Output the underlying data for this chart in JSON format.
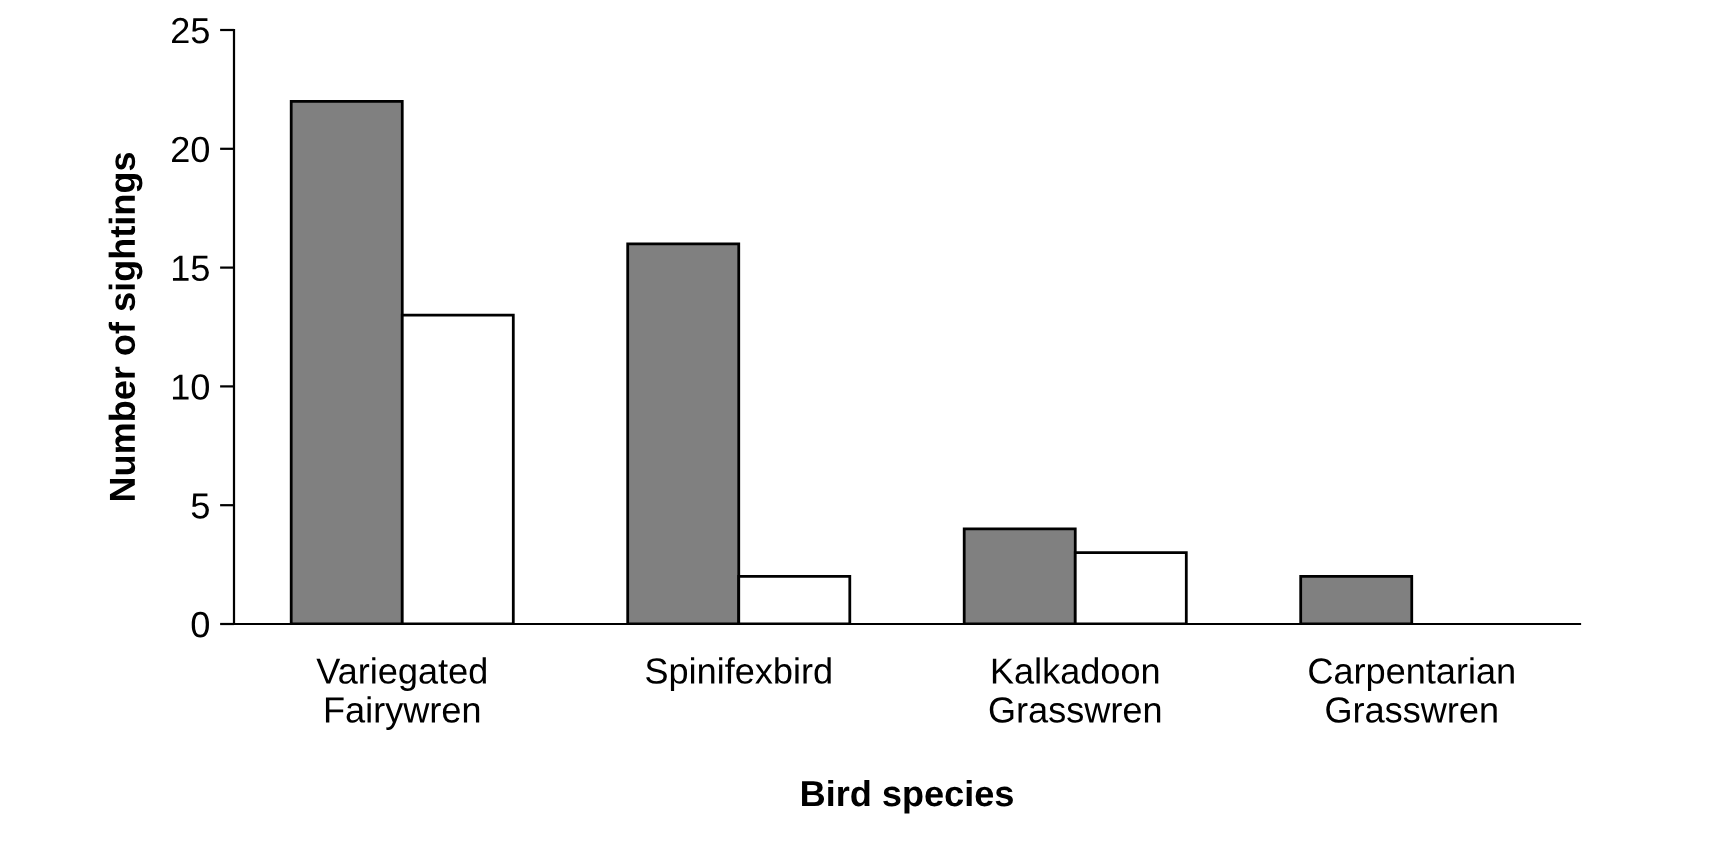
{
  "chart_data": {
    "type": "bar",
    "xlabel": "Bird species",
    "ylabel": "Number of sightings",
    "categories": [
      "Variegated\nFairywren",
      "Spinifexbird",
      "Kalkadoon\nGrasswren",
      "Carpentarian\nGrasswren"
    ],
    "series": [
      {
        "color": "#808080",
        "values": [
          22,
          16,
          4,
          2
        ]
      },
      {
        "color": "#ffffff",
        "values": [
          13,
          2,
          3,
          null
        ]
      }
    ],
    "ylim": [
      0,
      25
    ],
    "yticks": [
      0,
      5,
      10,
      15,
      20,
      25
    ],
    "grid": false,
    "legend": false
  }
}
